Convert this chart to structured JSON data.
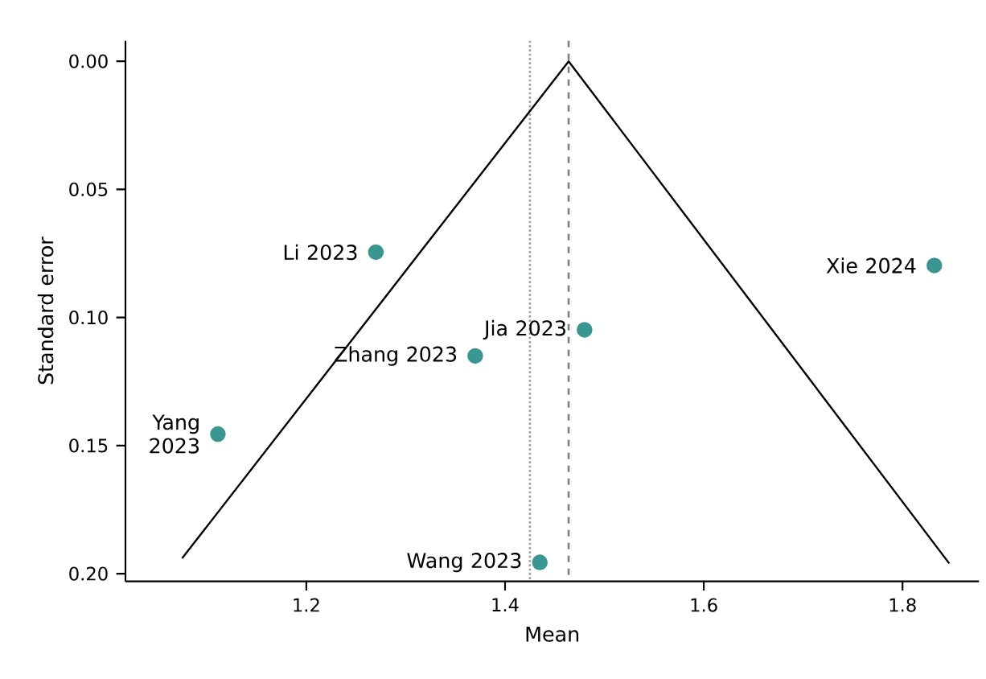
{
  "chart_data": {
    "type": "scatter",
    "xlabel": "Mean",
    "ylabel": "Standard error",
    "series": [
      {
        "color": "#3a9690",
        "marker": "circle",
        "x": [
          1.27,
          1.832,
          1.48,
          1.37,
          1.111,
          1.435
        ],
        "values": [
          0.0745,
          0.0797,
          0.1048,
          0.115,
          0.1455,
          0.1956
        ]
      },
      {
        "type": "line",
        "color": "#000000",
        "marker": "none",
        "x": [
          1.075,
          1.464,
          1.847
        ],
        "values": [
          0.194,
          0.0,
          0.196
        ]
      }
    ],
    "xlim": [
      1.018,
      1.877
    ],
    "ylim": [
      0.203,
      -0.008
    ],
    "xticks": [
      1.2,
      1.4,
      1.6,
      1.8
    ],
    "yticks": [
      {
        "value": 0,
        "label": "0.00"
      },
      {
        "value": 0.05,
        "label": "0.05"
      },
      {
        "value": 0.1,
        "label": "0.10"
      },
      {
        "value": 0.15,
        "label": "0.15"
      },
      {
        "value": 0.2,
        "label": "0.20"
      }
    ],
    "ref_lines": [
      {
        "axis": "x",
        "value": 1.425,
        "color": "#a0a0a0",
        "line_style": "dotted"
      },
      {
        "axis": "x",
        "value": 1.464,
        "color": "#808080",
        "line_style": "dashed"
      }
    ],
    "annotations": [
      {
        "text": "Li 2023",
        "x": 1.27,
        "y": 0.0745
      },
      {
        "text": "Xie 2024",
        "x": 1.832,
        "y": 0.0797
      },
      {
        "text": "Jia 2023",
        "x": 1.48,
        "y": 0.1048
      },
      {
        "text": "Zhang 2023",
        "x": 1.37,
        "y": 0.115
      },
      {
        "text": "Yang 2023",
        "x": 1.111,
        "y": 0.1455
      },
      {
        "text": "Wang 2023",
        "x": 1.435,
        "y": 0.1956
      }
    ]
  }
}
